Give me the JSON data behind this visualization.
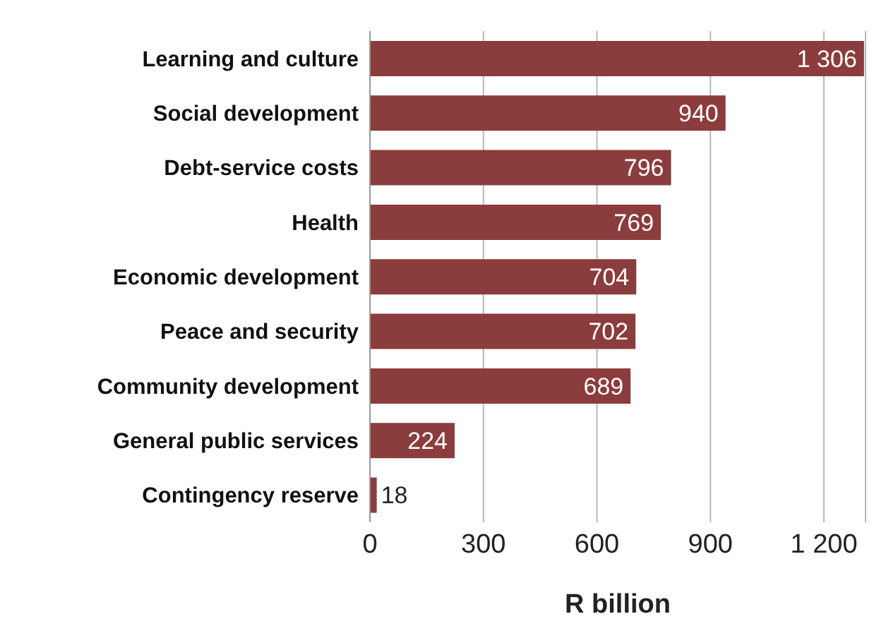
{
  "chart_data": {
    "type": "bar",
    "orientation": "horizontal",
    "xlabel": "R billion",
    "categories": [
      "Learning and culture",
      "Social development",
      "Debt-service costs",
      "Health",
      "Economic development",
      "Peace and security",
      "Community development",
      "General public services",
      "Contingency reserve"
    ],
    "values": [
      1306,
      940,
      796,
      769,
      704,
      702,
      689,
      224,
      18
    ],
    "value_labels": [
      "1 306",
      "940",
      "796",
      "769",
      "704",
      "702",
      "689",
      "224",
      "18"
    ],
    "color": "#8b3c3c",
    "xlim": [
      0,
      1310
    ],
    "xticks": [
      0,
      300,
      600,
      900,
      {
        "value": 1200,
        "label": "1 200"
      }
    ],
    "grid": "x"
  }
}
